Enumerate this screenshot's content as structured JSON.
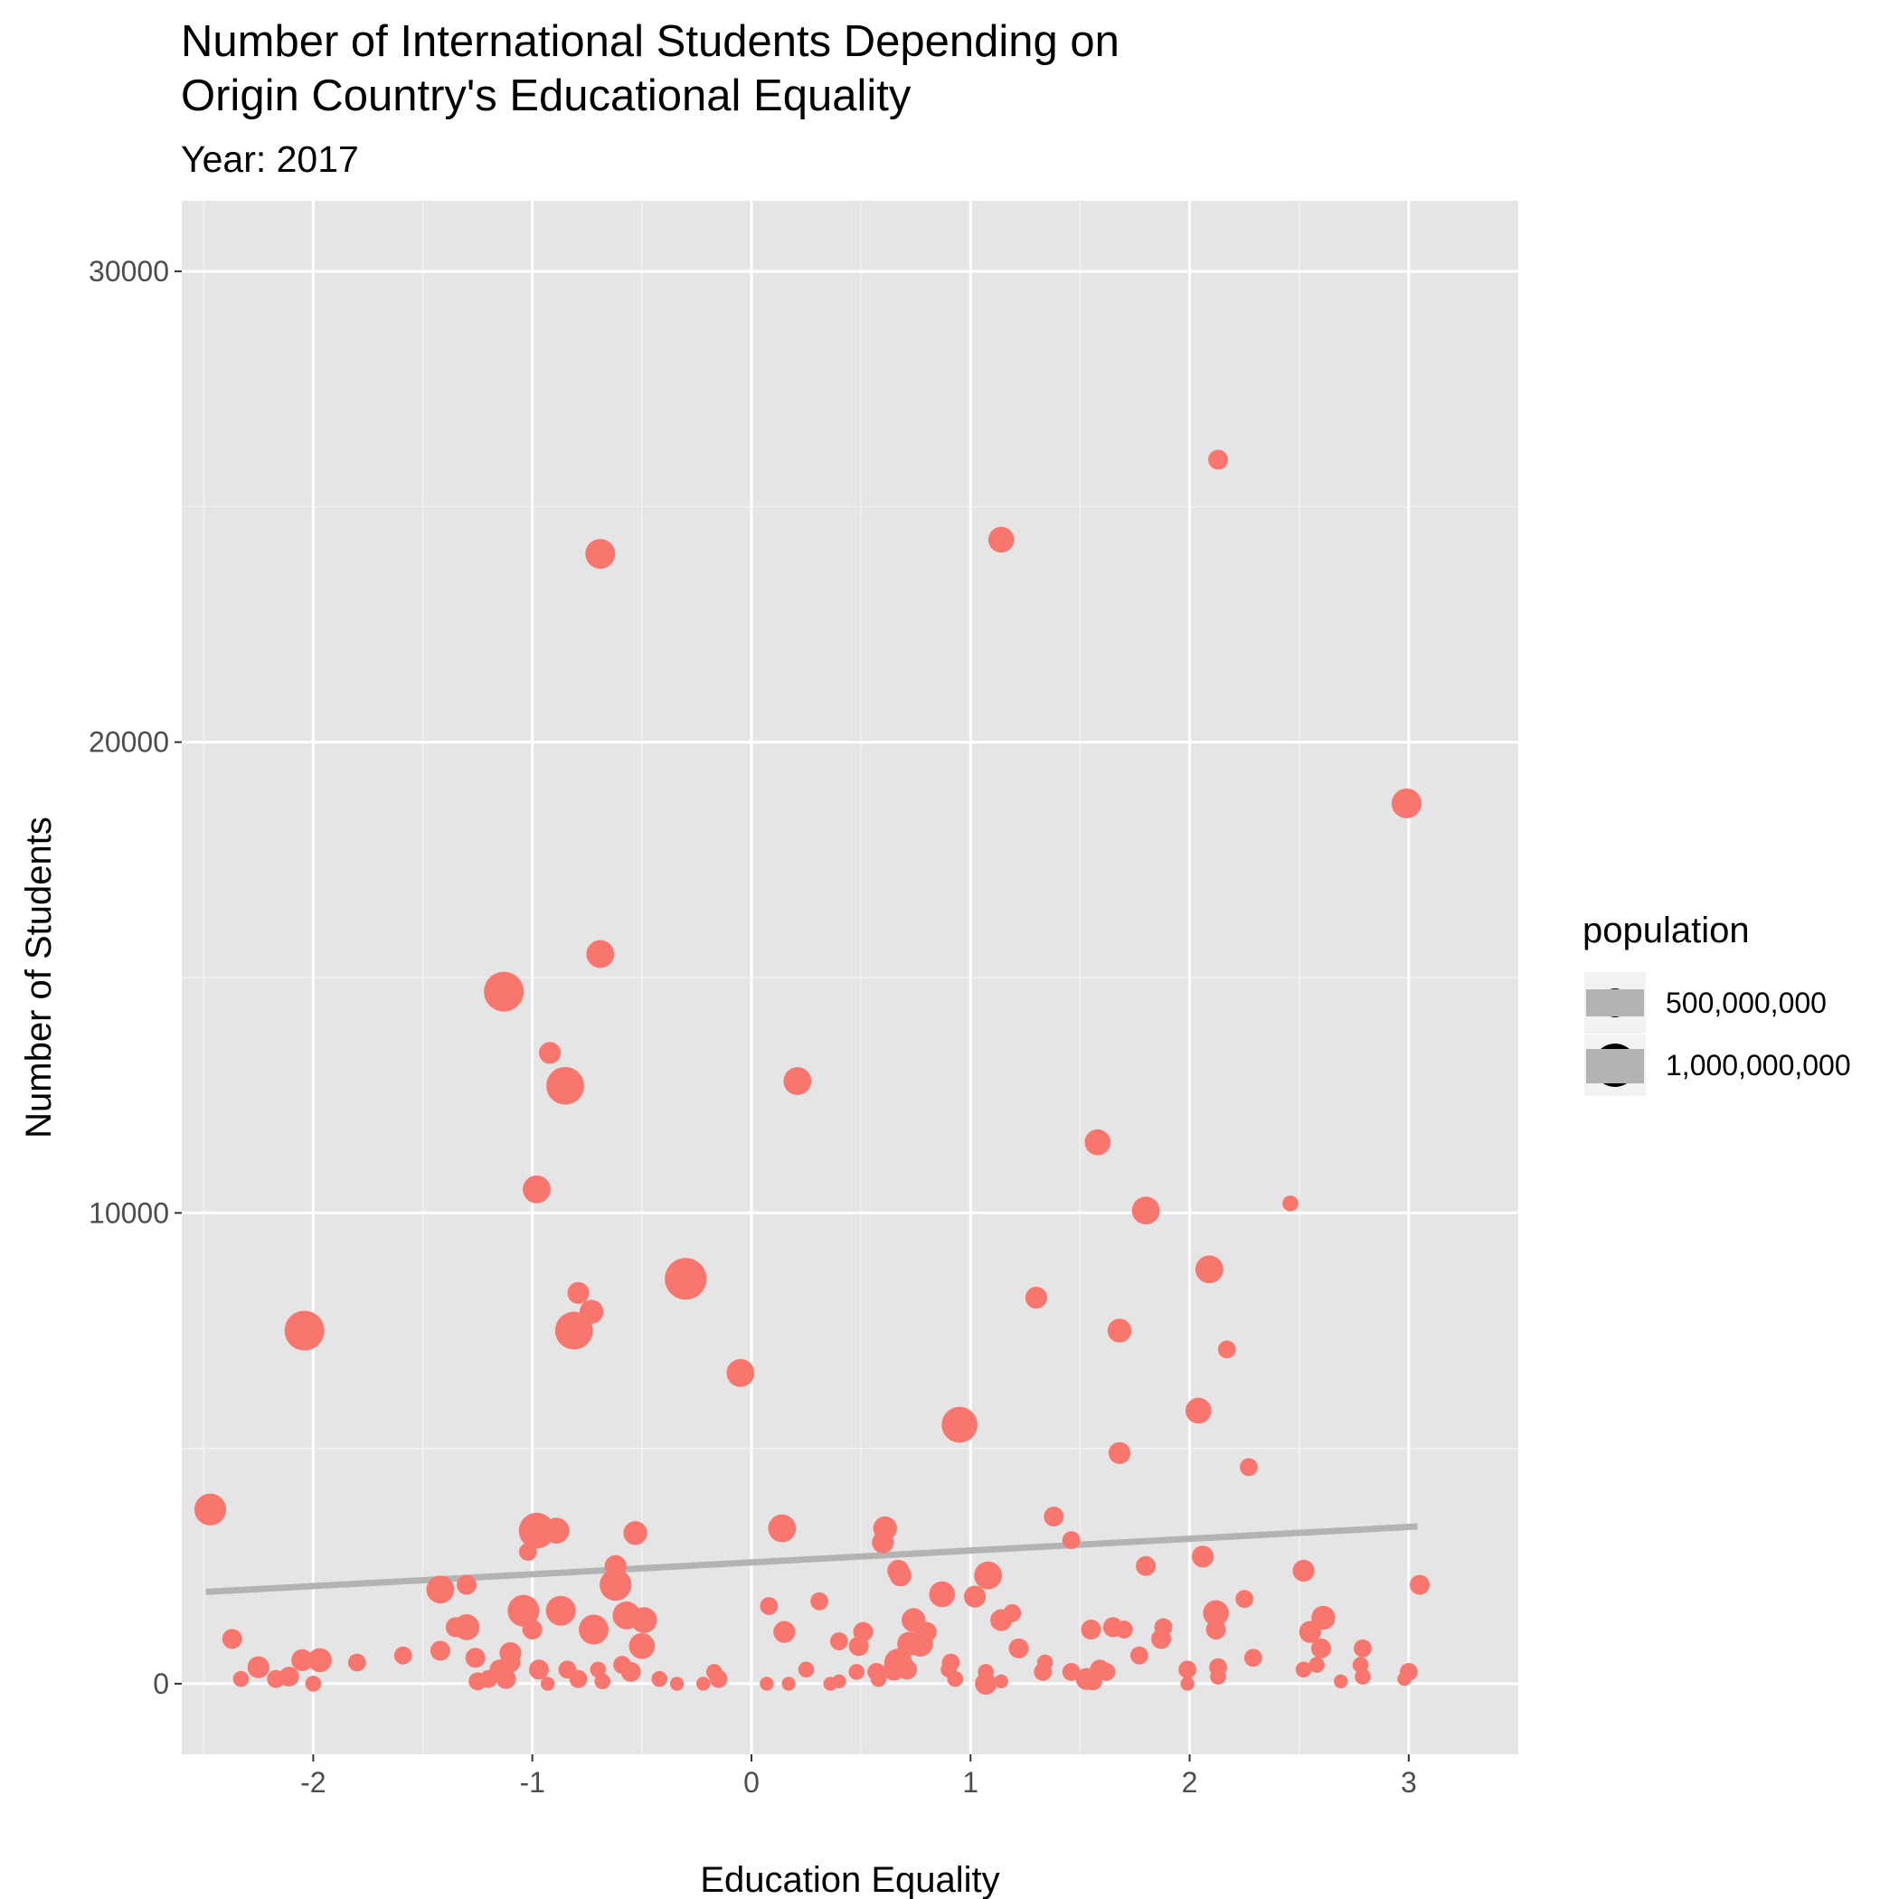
{
  "chart_data": {
    "type": "scatter",
    "title_line1": "Number of International Students Depending on",
    "title_line2": "Origin Country's Educational Equality",
    "subtitle": "Year: 2017",
    "xlabel": "Education Equality",
    "ylabel": "Number of Students",
    "xlim": [
      -2.6,
      3.5
    ],
    "ylim": [
      -1500,
      31500
    ],
    "x_ticks": [
      -2,
      -1,
      0,
      1,
      2,
      3
    ],
    "x_tick_labels": [
      "-2",
      "-1",
      "0",
      "1",
      "2",
      "3"
    ],
    "y_ticks": [
      0,
      10000,
      20000,
      30000
    ],
    "y_tick_labels": [
      "0",
      "10000",
      "20000",
      "30000"
    ],
    "grid": true,
    "point_color": "#F8766D",
    "trend_color": "#B3B3B3",
    "panel_bg": "#E5E5E5",
    "legend": {
      "title": "population",
      "position": "right",
      "entries": [
        {
          "label": "500,000,000",
          "value": 500000000
        },
        {
          "label": "1,000,000,000",
          "value": 1000000000
        }
      ]
    },
    "trend_line": {
      "x": [
        -2.49,
        3.04
      ],
      "y": [
        1950,
        3340
      ]
    },
    "points": [
      {
        "x": 2.13,
        "y": 26000,
        "s": 1.0
      },
      {
        "x": -0.69,
        "y": 24000,
        "s": 1.5
      },
      {
        "x": 1.14,
        "y": 24300,
        "s": 1.3
      },
      {
        "x": 2.99,
        "y": 18700,
        "s": 1.5
      },
      {
        "x": -0.69,
        "y": 15500,
        "s": 1.4
      },
      {
        "x": -1.13,
        "y": 14700,
        "s": 2.0
      },
      {
        "x": -0.92,
        "y": 13400,
        "s": 1.1
      },
      {
        "x": -0.85,
        "y": 12700,
        "s": 1.9
      },
      {
        "x": 0.21,
        "y": 12800,
        "s": 1.4
      },
      {
        "x": 1.58,
        "y": 11500,
        "s": 1.3
      },
      {
        "x": -0.98,
        "y": 10500,
        "s": 1.4
      },
      {
        "x": 1.8,
        "y": 10050,
        "s": 1.4
      },
      {
        "x": 2.46,
        "y": 10200,
        "s": 0.8
      },
      {
        "x": 2.09,
        "y": 8800,
        "s": 1.4
      },
      {
        "x": -0.3,
        "y": 8600,
        "s": 2.1
      },
      {
        "x": 1.3,
        "y": 8200,
        "s": 1.1
      },
      {
        "x": -0.79,
        "y": 8300,
        "s": 1.1
      },
      {
        "x": -0.73,
        "y": 7900,
        "s": 1.2
      },
      {
        "x": -0.81,
        "y": 7500,
        "s": 1.9
      },
      {
        "x": -2.04,
        "y": 7500,
        "s": 2.0
      },
      {
        "x": 1.68,
        "y": 7500,
        "s": 1.2
      },
      {
        "x": 2.17,
        "y": 7100,
        "s": 0.9
      },
      {
        "x": -0.05,
        "y": 6600,
        "s": 1.4
      },
      {
        "x": 2.04,
        "y": 5800,
        "s": 1.3
      },
      {
        "x": 0.95,
        "y": 5500,
        "s": 1.8
      },
      {
        "x": 1.68,
        "y": 4900,
        "s": 1.1
      },
      {
        "x": 2.27,
        "y": 4600,
        "s": 0.9
      },
      {
        "x": -2.47,
        "y": 3700,
        "s": 1.6
      },
      {
        "x": 1.38,
        "y": 3550,
        "s": 1.0
      },
      {
        "x": -0.98,
        "y": 3250,
        "s": 1.8
      },
      {
        "x": -0.89,
        "y": 3250,
        "s": 1.3
      },
      {
        "x": -0.53,
        "y": 3200,
        "s": 1.2
      },
      {
        "x": 0.14,
        "y": 3300,
        "s": 1.4
      },
      {
        "x": 0.61,
        "y": 3300,
        "s": 1.2
      },
      {
        "x": 1.46,
        "y": 3050,
        "s": 0.9
      },
      {
        "x": 0.6,
        "y": 3000,
        "s": 1.1
      },
      {
        "x": -1.02,
        "y": 2800,
        "s": 0.9
      },
      {
        "x": 2.06,
        "y": 2700,
        "s": 1.1
      },
      {
        "x": -0.62,
        "y": 2500,
        "s": 1.1
      },
      {
        "x": 0.67,
        "y": 2400,
        "s": 1.1
      },
      {
        "x": 0.68,
        "y": 2300,
        "s": 1.1
      },
      {
        "x": 1.8,
        "y": 2500,
        "s": 1.0
      },
      {
        "x": 2.52,
        "y": 2400,
        "s": 1.1
      },
      {
        "x": 1.08,
        "y": 2300,
        "s": 1.4
      },
      {
        "x": -0.62,
        "y": 2100,
        "s": 1.6
      },
      {
        "x": -1.42,
        "y": 2000,
        "s": 1.4
      },
      {
        "x": -1.3,
        "y": 2100,
        "s": 1.0
      },
      {
        "x": 3.05,
        "y": 2100,
        "s": 1.0
      },
      {
        "x": 0.87,
        "y": 1900,
        "s": 1.3
      },
      {
        "x": 1.02,
        "y": 1850,
        "s": 1.1
      },
      {
        "x": 0.31,
        "y": 1750,
        "s": 0.9
      },
      {
        "x": 0.08,
        "y": 1650,
        "s": 0.9
      },
      {
        "x": 2.25,
        "y": 1800,
        "s": 0.9
      },
      {
        "x": -1.04,
        "y": 1550,
        "s": 1.6
      },
      {
        "x": -0.87,
        "y": 1550,
        "s": 1.5
      },
      {
        "x": 1.19,
        "y": 1500,
        "s": 0.9
      },
      {
        "x": 2.12,
        "y": 1500,
        "s": 1.3
      },
      {
        "x": -0.57,
        "y": 1450,
        "s": 1.4
      },
      {
        "x": -0.49,
        "y": 1350,
        "s": 1.3
      },
      {
        "x": 0.74,
        "y": 1350,
        "s": 1.2
      },
      {
        "x": 1.14,
        "y": 1350,
        "s": 1.1
      },
      {
        "x": 2.61,
        "y": 1400,
        "s": 1.2
      },
      {
        "x": -1.35,
        "y": 1200,
        "s": 1.0
      },
      {
        "x": -1.3,
        "y": 1200,
        "s": 1.3
      },
      {
        "x": -1.0,
        "y": 1150,
        "s": 1.0
      },
      {
        "x": -0.72,
        "y": 1150,
        "s": 1.5
      },
      {
        "x": 0.15,
        "y": 1100,
        "s": 1.1
      },
      {
        "x": 0.51,
        "y": 1100,
        "s": 1.0
      },
      {
        "x": 0.8,
        "y": 1100,
        "s": 1.0
      },
      {
        "x": 1.55,
        "y": 1150,
        "s": 1.0
      },
      {
        "x": 1.65,
        "y": 1200,
        "s": 1.0
      },
      {
        "x": 1.7,
        "y": 1150,
        "s": 0.9
      },
      {
        "x": 1.88,
        "y": 1200,
        "s": 0.9
      },
      {
        "x": 2.12,
        "y": 1150,
        "s": 1.0
      },
      {
        "x": 2.55,
        "y": 1100,
        "s": 1.1
      },
      {
        "x": -2.37,
        "y": 950,
        "s": 1.0
      },
      {
        "x": 0.4,
        "y": 900,
        "s": 0.9
      },
      {
        "x": 0.49,
        "y": 800,
        "s": 1.0
      },
      {
        "x": 0.72,
        "y": 850,
        "s": 1.2
      },
      {
        "x": 0.77,
        "y": 850,
        "s": 1.3
      },
      {
        "x": 1.22,
        "y": 750,
        "s": 1.0
      },
      {
        "x": 1.87,
        "y": 950,
        "s": 1.0
      },
      {
        "x": 2.6,
        "y": 750,
        "s": 1.0
      },
      {
        "x": 2.79,
        "y": 750,
        "s": 0.9
      },
      {
        "x": -0.5,
        "y": 800,
        "s": 1.3
      },
      {
        "x": -1.1,
        "y": 650,
        "s": 1.1
      },
      {
        "x": -1.42,
        "y": 700,
        "s": 1.0
      },
      {
        "x": -1.59,
        "y": 600,
        "s": 0.9
      },
      {
        "x": -1.26,
        "y": 550,
        "s": 1.0
      },
      {
        "x": -2.05,
        "y": 500,
        "s": 1.1
      },
      {
        "x": -1.97,
        "y": 500,
        "s": 1.2
      },
      {
        "x": -1.8,
        "y": 450,
        "s": 0.9
      },
      {
        "x": -1.1,
        "y": 450,
        "s": 1.0
      },
      {
        "x": 0.67,
        "y": 450,
        "s": 1.4
      },
      {
        "x": 0.91,
        "y": 450,
        "s": 0.9
      },
      {
        "x": 1.34,
        "y": 450,
        "s": 0.8
      },
      {
        "x": 1.77,
        "y": 600,
        "s": 0.9
      },
      {
        "x": 2.29,
        "y": 550,
        "s": 0.9
      },
      {
        "x": 2.58,
        "y": 400,
        "s": 0.8
      },
      {
        "x": 2.78,
        "y": 400,
        "s": 0.8
      },
      {
        "x": -2.25,
        "y": 350,
        "s": 1.1
      },
      {
        "x": -1.15,
        "y": 300,
        "s": 1.0
      },
      {
        "x": -0.97,
        "y": 300,
        "s": 1.0
      },
      {
        "x": -0.84,
        "y": 300,
        "s": 0.9
      },
      {
        "x": -0.7,
        "y": 300,
        "s": 0.8
      },
      {
        "x": -0.59,
        "y": 400,
        "s": 0.9
      },
      {
        "x": -0.55,
        "y": 250,
        "s": 1.0
      },
      {
        "x": -0.17,
        "y": 250,
        "s": 0.8
      },
      {
        "x": 0.25,
        "y": 300,
        "s": 0.8
      },
      {
        "x": 0.48,
        "y": 250,
        "s": 0.8
      },
      {
        "x": 0.57,
        "y": 250,
        "s": 0.9
      },
      {
        "x": 0.65,
        "y": 300,
        "s": 1.1
      },
      {
        "x": 0.71,
        "y": 300,
        "s": 1.0
      },
      {
        "x": 0.9,
        "y": 300,
        "s": 0.8
      },
      {
        "x": 1.07,
        "y": 250,
        "s": 0.8
      },
      {
        "x": 1.33,
        "y": 250,
        "s": 0.9
      },
      {
        "x": 1.46,
        "y": 250,
        "s": 0.9
      },
      {
        "x": 1.59,
        "y": 300,
        "s": 1.0
      },
      {
        "x": 1.62,
        "y": 250,
        "s": 0.9
      },
      {
        "x": 1.99,
        "y": 300,
        "s": 0.9
      },
      {
        "x": 2.13,
        "y": 350,
        "s": 0.9
      },
      {
        "x": 2.52,
        "y": 300,
        "s": 0.8
      },
      {
        "x": 3.0,
        "y": 250,
        "s": 0.9
      },
      {
        "x": -2.33,
        "y": 100,
        "s": 0.8
      },
      {
        "x": -2.17,
        "y": 100,
        "s": 0.9
      },
      {
        "x": -2.11,
        "y": 150,
        "s": 1.0
      },
      {
        "x": -2.0,
        "y": 0,
        "s": 0.8
      },
      {
        "x": -1.25,
        "y": 50,
        "s": 0.9
      },
      {
        "x": -1.2,
        "y": 100,
        "s": 0.9
      },
      {
        "x": -1.12,
        "y": 100,
        "s": 1.0
      },
      {
        "x": -0.93,
        "y": 0,
        "s": 0.7
      },
      {
        "x": -0.79,
        "y": 100,
        "s": 0.9
      },
      {
        "x": -0.68,
        "y": 50,
        "s": 0.8
      },
      {
        "x": -0.42,
        "y": 100,
        "s": 0.8
      },
      {
        "x": -0.34,
        "y": 0,
        "s": 0.7
      },
      {
        "x": -0.22,
        "y": 0,
        "s": 0.7
      },
      {
        "x": -0.15,
        "y": 100,
        "s": 0.9
      },
      {
        "x": 0.07,
        "y": 0,
        "s": 0.7
      },
      {
        "x": 0.17,
        "y": 0,
        "s": 0.7
      },
      {
        "x": 0.36,
        "y": 0,
        "s": 0.7
      },
      {
        "x": 0.4,
        "y": 50,
        "s": 0.7
      },
      {
        "x": 0.58,
        "y": 100,
        "s": 0.8
      },
      {
        "x": 0.93,
        "y": 100,
        "s": 0.8
      },
      {
        "x": 1.07,
        "y": 0,
        "s": 1.1
      },
      {
        "x": 1.14,
        "y": 50,
        "s": 0.7
      },
      {
        "x": 1.53,
        "y": 100,
        "s": 1.1
      },
      {
        "x": 1.56,
        "y": 50,
        "s": 0.9
      },
      {
        "x": 1.99,
        "y": 0,
        "s": 0.7
      },
      {
        "x": 2.13,
        "y": 150,
        "s": 0.8
      },
      {
        "x": 2.69,
        "y": 50,
        "s": 0.7
      },
      {
        "x": 2.79,
        "y": 150,
        "s": 0.8
      },
      {
        "x": 2.98,
        "y": 100,
        "s": 0.7
      }
    ]
  }
}
